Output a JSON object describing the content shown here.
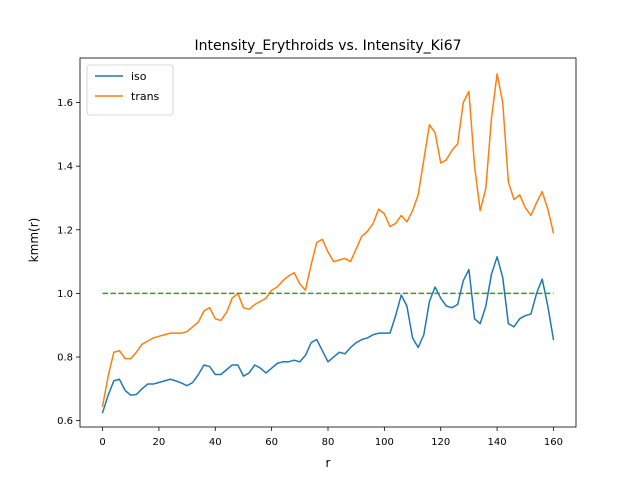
{
  "chart_data": {
    "type": "line",
    "title": "Intensity_Erythroids vs. Intensity_Ki67",
    "xlabel": "r",
    "ylabel": "kmm(r)",
    "xlim": [
      -8,
      168
    ],
    "ylim": [
      0.58,
      1.74
    ],
    "x_ticks": [
      0,
      20,
      40,
      60,
      80,
      100,
      120,
      140,
      160
    ],
    "y_ticks": [
      0.6,
      0.8,
      1.0,
      1.2,
      1.4,
      1.6
    ],
    "x_tick_labels": [
      "0",
      "20",
      "40",
      "60",
      "80",
      "100",
      "120",
      "140",
      "160"
    ],
    "y_tick_labels": [
      "0.6",
      "0.8",
      "1.0",
      "1.2",
      "1.4",
      "1.6"
    ],
    "grid": false,
    "legend_position": "top-left",
    "series": [
      {
        "name": "iso",
        "color": "#1f77b4",
        "style": "solid",
        "x": [
          0,
          2,
          4,
          6,
          8,
          10,
          12,
          14,
          16,
          18,
          20,
          22,
          24,
          26,
          28,
          30,
          32,
          34,
          36,
          38,
          40,
          42,
          44,
          46,
          48,
          50,
          52,
          54,
          56,
          58,
          60,
          62,
          64,
          66,
          68,
          70,
          72,
          74,
          76,
          78,
          80,
          82,
          84,
          86,
          88,
          90,
          92,
          94,
          96,
          98,
          100,
          102,
          104,
          106,
          108,
          110,
          112,
          114,
          116,
          118,
          120,
          122,
          124,
          126,
          128,
          130,
          132,
          134,
          136,
          138,
          140,
          142,
          144,
          146,
          148,
          150,
          152,
          154,
          156,
          158,
          160
        ],
        "y": [
          0.625,
          0.68,
          0.725,
          0.73,
          0.695,
          0.68,
          0.682,
          0.7,
          0.715,
          0.715,
          0.72,
          0.725,
          0.73,
          0.725,
          0.718,
          0.71,
          0.72,
          0.745,
          0.775,
          0.77,
          0.745,
          0.745,
          0.76,
          0.775,
          0.775,
          0.74,
          0.75,
          0.775,
          0.765,
          0.75,
          0.765,
          0.78,
          0.785,
          0.785,
          0.79,
          0.785,
          0.805,
          0.845,
          0.855,
          0.82,
          0.785,
          0.8,
          0.815,
          0.81,
          0.83,
          0.845,
          0.855,
          0.86,
          0.87,
          0.875,
          0.875,
          0.875,
          0.93,
          0.995,
          0.96,
          0.86,
          0.83,
          0.87,
          0.975,
          1.02,
          0.985,
          0.96,
          0.955,
          0.965,
          1.04,
          1.075,
          0.92,
          0.905,
          0.96,
          1.06,
          1.115,
          1.05,
          0.905,
          0.895,
          0.92,
          0.93,
          0.935,
          1.0,
          1.045,
          0.96,
          0.855
        ]
      },
      {
        "name": "trans",
        "color": "#ff7f0e",
        "style": "solid",
        "x": [
          0,
          2,
          4,
          6,
          8,
          10,
          12,
          14,
          16,
          18,
          20,
          22,
          24,
          26,
          28,
          30,
          32,
          34,
          36,
          38,
          40,
          42,
          44,
          46,
          48,
          50,
          52,
          54,
          56,
          58,
          60,
          62,
          64,
          66,
          68,
          70,
          72,
          74,
          76,
          78,
          80,
          82,
          84,
          86,
          88,
          90,
          92,
          94,
          96,
          98,
          100,
          102,
          104,
          106,
          108,
          110,
          112,
          114,
          116,
          118,
          120,
          122,
          124,
          126,
          128,
          130,
          132,
          134,
          136,
          138,
          140,
          142,
          144,
          146,
          148,
          150,
          152,
          154,
          156,
          158,
          160
        ],
        "y": [
          0.645,
          0.74,
          0.815,
          0.82,
          0.795,
          0.795,
          0.815,
          0.84,
          0.85,
          0.86,
          0.865,
          0.87,
          0.875,
          0.875,
          0.875,
          0.88,
          0.895,
          0.91,
          0.945,
          0.955,
          0.92,
          0.915,
          0.94,
          0.985,
          1.0,
          0.955,
          0.95,
          0.965,
          0.975,
          0.985,
          1.01,
          1.02,
          1.04,
          1.055,
          1.065,
          1.03,
          1.01,
          1.09,
          1.16,
          1.17,
          1.13,
          1.1,
          1.105,
          1.11,
          1.1,
          1.14,
          1.18,
          1.195,
          1.22,
          1.265,
          1.25,
          1.21,
          1.22,
          1.245,
          1.225,
          1.26,
          1.31,
          1.42,
          1.53,
          1.505,
          1.41,
          1.42,
          1.45,
          1.47,
          1.6,
          1.635,
          1.4,
          1.26,
          1.33,
          1.55,
          1.69,
          1.6,
          1.35,
          1.295,
          1.31,
          1.27,
          1.245,
          1.285,
          1.32,
          1.265,
          1.19
        ]
      },
      {
        "name": "",
        "color": "#2ca02c",
        "style": "dashed",
        "x": [
          0,
          160
        ],
        "y": [
          1.0,
          1.0
        ]
      }
    ]
  }
}
